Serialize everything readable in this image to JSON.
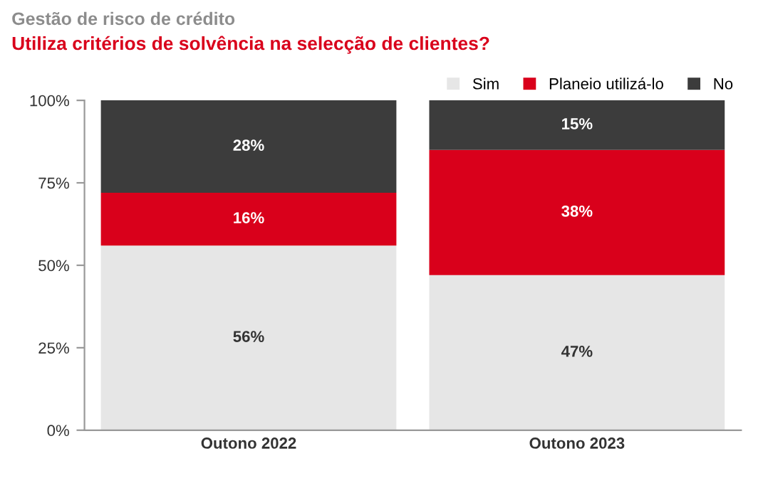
{
  "chart_data": {
    "type": "bar",
    "title": "Gestão de risco de crédito",
    "subtitle": "Utiliza critérios de solvência na selecção de clientes?",
    "categories": [
      "Outono 2022",
      "Outono 2023"
    ],
    "stacked": true,
    "series": [
      {
        "name": "Sim",
        "color": "#e6e6e6",
        "values": [
          56,
          47
        ],
        "value_labels": [
          "56%",
          "47%"
        ]
      },
      {
        "name": "Planeio utilizá-lo",
        "color": "#d9001b",
        "values": [
          16,
          38
        ],
        "value_labels": [
          "16%",
          "38%"
        ]
      },
      {
        "name": "No",
        "color": "#3c3c3c",
        "values": [
          28,
          15
        ],
        "value_labels": [
          "28%",
          "15%"
        ]
      }
    ],
    "ylim": [
      0,
      100
    ],
    "yticks": [
      {
        "value": 0,
        "label": "0%"
      },
      {
        "value": 25,
        "label": "25%"
      },
      {
        "value": 50,
        "label": "50%"
      },
      {
        "value": 75,
        "label": "75%"
      },
      {
        "value": 100,
        "label": "100%"
      }
    ],
    "legend": "top right",
    "grid": false
  }
}
